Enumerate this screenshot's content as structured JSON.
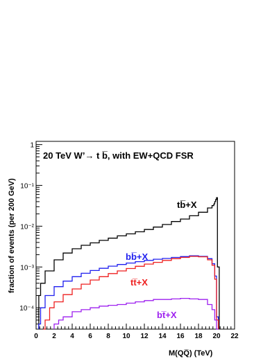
{
  "chart_data": {
    "type": "line",
    "title": "20 TeV W’→ t b̅, with EW+QCD FSR",
    "xlabel": "M(QQ̅)  (TeV)",
    "ylabel": "fraction of events (per 200 GeV)",
    "xlim": [
      0,
      22
    ],
    "ylim": [
      3e-05,
      1.2
    ],
    "yscale": "log",
    "grid": false,
    "x_ticks": [
      "0",
      "2",
      "4",
      "6",
      "8",
      "10",
      "12",
      "14",
      "16",
      "18",
      "20",
      "22"
    ],
    "y_ticks": [
      "1",
      "10⁻¹",
      "10⁻²",
      "10⁻³",
      "10⁻⁴"
    ],
    "bin_width_tev": 0.2,
    "series": [
      {
        "name": "tb̅+X",
        "color": "#000000",
        "x": [
          0.3,
          0.5,
          1,
          2,
          3,
          4,
          5,
          6,
          7,
          8,
          9,
          10,
          11,
          12,
          13,
          14,
          15,
          16,
          17,
          18,
          19,
          19.5,
          19.7,
          19.8,
          19.9,
          20.0,
          20.1
        ],
        "values": [
          0.0002,
          0.0004,
          0.0008,
          0.0015,
          0.0022,
          0.0028,
          0.0034,
          0.0039,
          0.0045,
          0.0051,
          0.0058,
          0.0065,
          0.0073,
          0.0083,
          0.0095,
          0.011,
          0.013,
          0.015,
          0.018,
          0.022,
          0.028,
          0.032,
          0.035,
          0.04,
          0.045,
          0.05,
          0.001
        ]
      },
      {
        "name": "bb̅+X",
        "color": "#1f1fef",
        "x": [
          0.3,
          0.5,
          1,
          2,
          3,
          4,
          5,
          6,
          7,
          8,
          9,
          10,
          11,
          12,
          13,
          14,
          15,
          16,
          17,
          18,
          19,
          19.5,
          19.8,
          20.0
        ],
        "values": [
          4e-05,
          0.0001,
          0.0002,
          0.00033,
          0.00045,
          0.00058,
          0.0007,
          0.00082,
          0.00093,
          0.00105,
          0.00115,
          0.00125,
          0.00135,
          0.00145,
          0.00155,
          0.00162,
          0.00172,
          0.0018,
          0.00188,
          0.00182,
          0.0016,
          0.0012,
          0.0006,
          6e-05
        ]
      },
      {
        "name": "tt̅+X",
        "color": "#ee1f1f",
        "x": [
          0.8,
          1,
          1.5,
          2,
          3,
          4,
          5,
          6,
          7,
          8,
          9,
          10,
          11,
          12,
          13,
          14,
          15,
          16,
          17,
          18,
          19,
          19.5,
          19.8,
          20.0
        ],
        "values": [
          3e-05,
          5e-05,
          0.0001,
          0.00014,
          0.00021,
          0.00029,
          0.00038,
          0.00048,
          0.00058,
          0.00069,
          0.0008,
          0.00092,
          0.00104,
          0.00118,
          0.0013,
          0.00145,
          0.0016,
          0.00172,
          0.00182,
          0.00178,
          0.0015,
          0.0011,
          0.0005,
          5e-05
        ]
      },
      {
        "name": "bt̅+X",
        "color": "#9d1fef",
        "x": [
          2,
          2.5,
          3,
          4,
          5,
          6,
          7,
          8,
          9,
          10,
          11,
          12,
          13,
          14,
          15,
          16,
          17,
          18,
          19,
          19.5,
          19.8,
          20.0
        ],
        "values": [
          4e-05,
          5e-05,
          6e-05,
          8e-05,
          9e-05,
          0.0001,
          0.00011,
          0.000115,
          0.00012,
          0.00013,
          0.00014,
          0.00015,
          0.00016,
          0.00016,
          0.000165,
          0.00017,
          0.000165,
          0.00016,
          0.00012,
          9e-05,
          5e-05,
          3e-05
        ]
      }
    ],
    "labels": {
      "title_text": "20 TeV W’→ t b̅, with EW+QCD FSR",
      "tb": "tb̅+X",
      "bb": "bb̅+X",
      "tt": "tt̅+X",
      "bt": "bt̅+X"
    }
  }
}
